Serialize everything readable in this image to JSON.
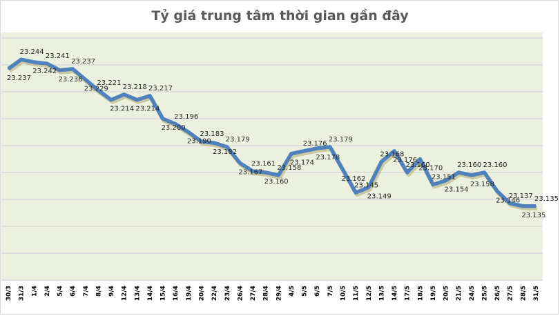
{
  "chart_data": {
    "type": "line",
    "title": "Tỷ giá trung tâm thời gian gần đây",
    "xlabel": "",
    "ylabel": "",
    "ylim": [
      23.08,
      23.26
    ],
    "grid": true,
    "legend": "none",
    "colors": {
      "line": "#4f81bd",
      "plot_bg": "#ebf1de",
      "grid": "#d9d9d9"
    },
    "categories": [
      "30/3",
      "31/3",
      "1/4",
      "2/4",
      "5/4",
      "6/4",
      "7/4",
      "8/4",
      "9/4",
      "12/4",
      "13/4",
      "14/4",
      "15/4",
      "16/4",
      "19/4",
      "20/4",
      "22/4",
      "23/4",
      "26/4",
      "27/4",
      "28/4",
      "29/4",
      "4/5",
      "5/5",
      "6/5",
      "7/5",
      "10/5",
      "11/5",
      "12/5",
      "13/5",
      "14/5",
      "17/5",
      "18/5",
      "19/5",
      "20/5",
      "21/5",
      "24/5",
      "25/5",
      "26/5",
      "27/5",
      "28/5",
      "31/5"
    ],
    "values": [
      23.237,
      23.244,
      23.242,
      23.241,
      23.236,
      23.237,
      23.229,
      23.221,
      23.214,
      23.218,
      23.214,
      23.217,
      23.2,
      23.196,
      23.19,
      23.183,
      23.182,
      23.179,
      23.167,
      23.161,
      23.16,
      23.158,
      23.174,
      23.176,
      23.178,
      23.179,
      23.162,
      23.145,
      23.149,
      23.168,
      23.176,
      23.16,
      23.17,
      23.151,
      23.154,
      23.16,
      23.158,
      23.16,
      23.146,
      23.137,
      23.135,
      23.135
    ],
    "data_labels": [
      "23.237",
      "23.244",
      "23.242",
      "23.241",
      "23.236",
      "23.237",
      "23.229",
      "23.221",
      "23.214",
      "23.218",
      "23.214",
      "23.217",
      "23.200",
      "23.196",
      "23.190",
      "23.183",
      "23.182",
      "23.179",
      "23.167",
      "23.161",
      "23.160",
      "23.158",
      "23.174",
      "23.176",
      "23.178",
      "23.179",
      "23.162",
      "23.145",
      "23.149",
      "23.168",
      "23.176",
      "23.160",
      "23.170",
      "23.151",
      "23.154",
      "23.160",
      "23.158",
      "23.160",
      "23.146",
      "23.137",
      "23.135",
      "23.135"
    ]
  }
}
